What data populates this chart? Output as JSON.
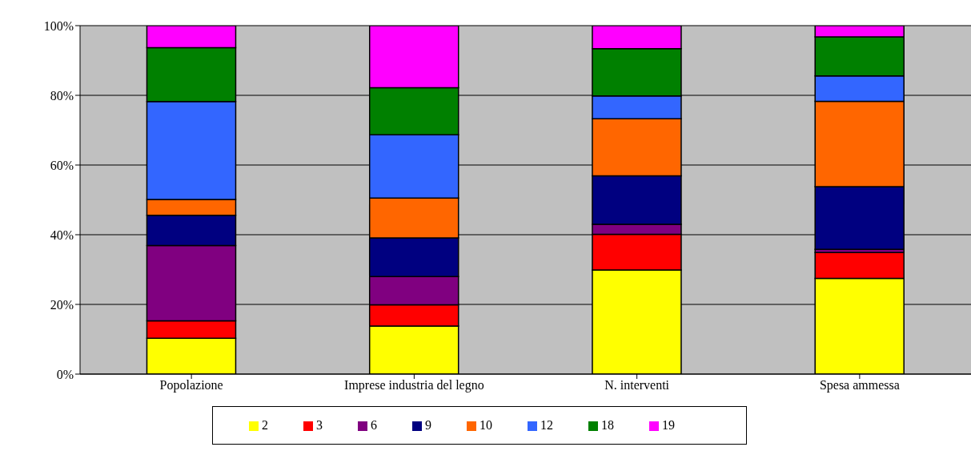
{
  "chart_data": {
    "type": "bar",
    "stacked": true,
    "categories": [
      "Popolazione",
      "Imprese industria del legno",
      "N. interventi",
      "Spesa ammessa"
    ],
    "series": [
      {
        "name": "2",
        "color": "#ffff00",
        "values": [
          10.3,
          13.8,
          29.9,
          27.5
        ]
      },
      {
        "name": "3",
        "color": "#ff0000",
        "values": [
          5.0,
          6.1,
          10.2,
          7.4
        ]
      },
      {
        "name": "6",
        "color": "#800080",
        "values": [
          21.6,
          8.1,
          2.9,
          0.9
        ]
      },
      {
        "name": "9",
        "color": "#000080",
        "values": [
          8.7,
          11.1,
          13.9,
          18.0
        ]
      },
      {
        "name": "10",
        "color": "#ff6600",
        "values": [
          4.5,
          11.4,
          16.4,
          24.5
        ]
      },
      {
        "name": "12",
        "color": "#3366ff",
        "values": [
          28.1,
          18.2,
          6.5,
          7.3
        ]
      },
      {
        "name": "18",
        "color": "#008000",
        "values": [
          15.5,
          13.5,
          13.6,
          11.2
        ]
      },
      {
        "name": "19",
        "color": "#ff00ff",
        "values": [
          6.3,
          17.8,
          6.6,
          3.2
        ]
      }
    ],
    "ylim": [
      0,
      100
    ],
    "yticks": [
      {
        "value": 0,
        "label": "0%"
      },
      {
        "value": 20,
        "label": "20%"
      },
      {
        "value": 40,
        "label": "40%"
      },
      {
        "value": 60,
        "label": "60%"
      },
      {
        "value": 80,
        "label": "80%"
      },
      {
        "value": 100,
        "label": "100%"
      }
    ],
    "grid": "y",
    "legend": "bottom"
  }
}
